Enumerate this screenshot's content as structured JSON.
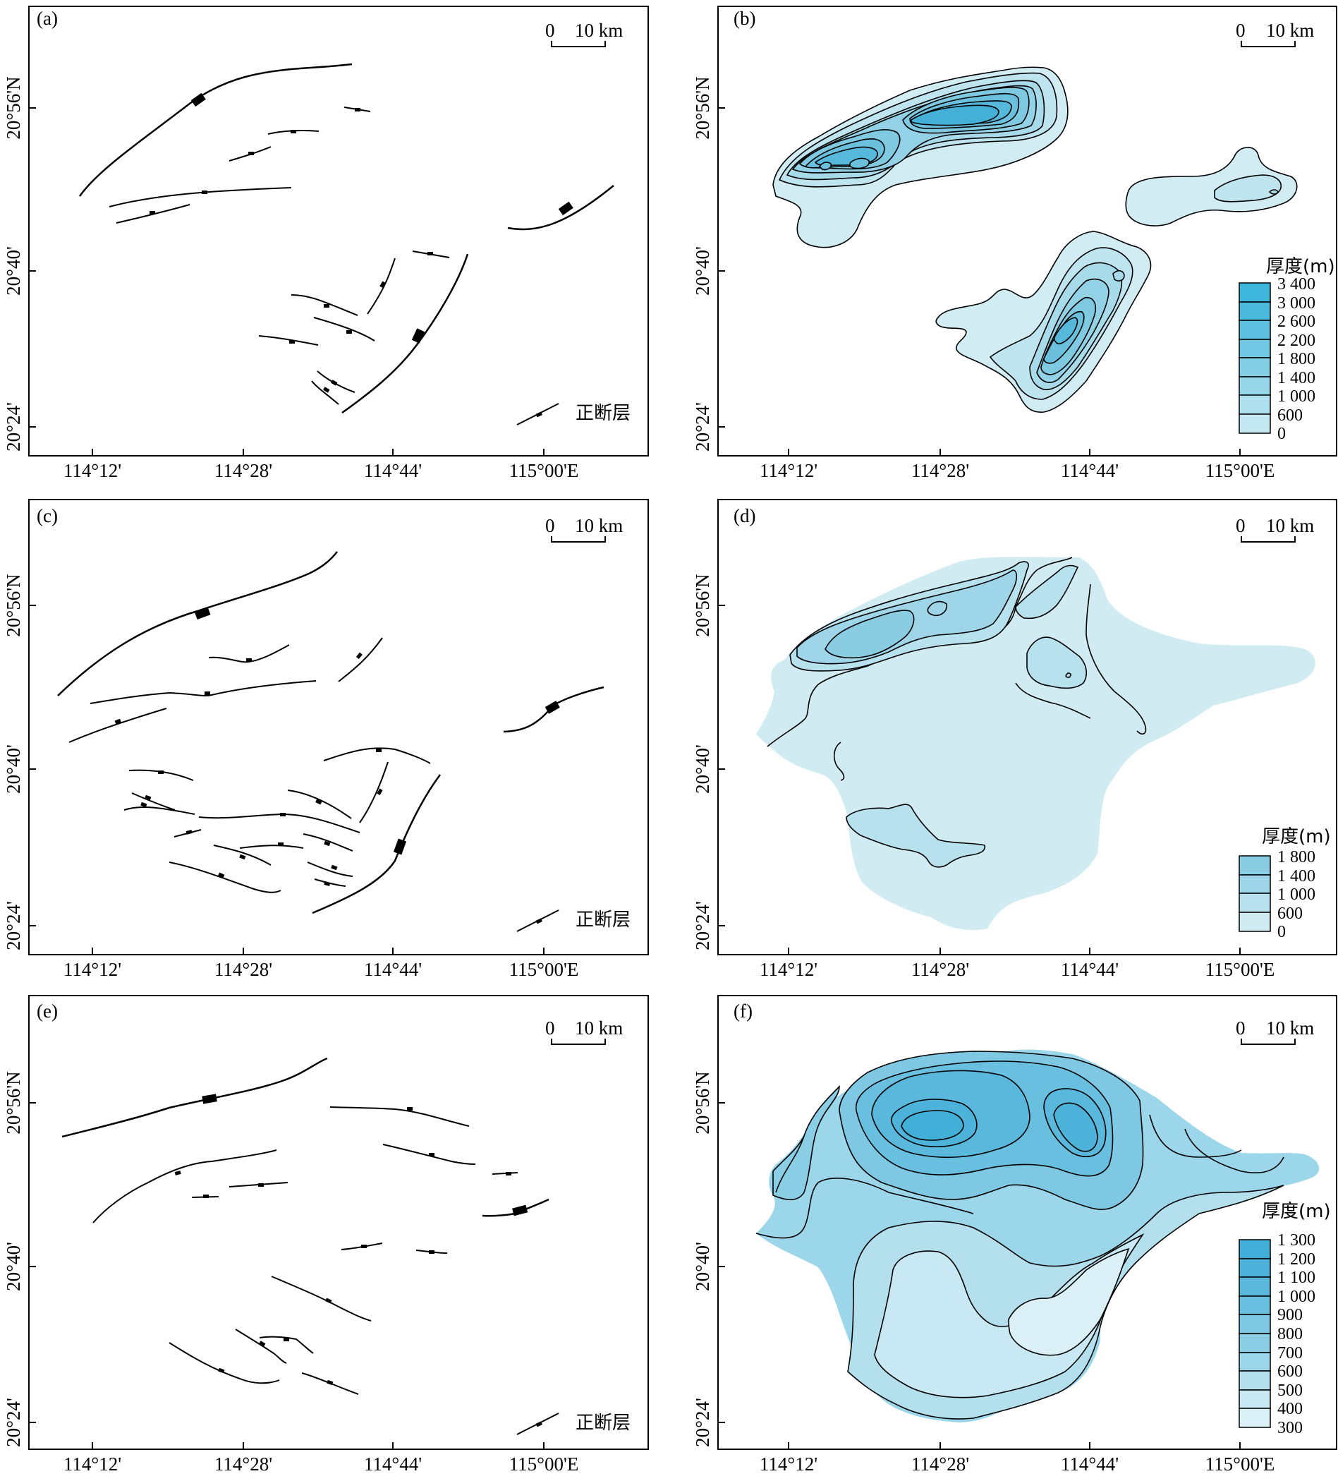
{
  "x_ticks": [
    "114°12'",
    "114°28'",
    "114°44'",
    "115°00'E"
  ],
  "y_ticks": [
    "20°56'N",
    "20°40'",
    "20°24'"
  ],
  "scale_bar": {
    "zero": "0",
    "length": "10 km"
  },
  "fault_legend": "正断层",
  "legend_title": "厚度(m)",
  "panels": [
    {
      "label": "(a)",
      "kind": "fault-map"
    },
    {
      "label": "(b)",
      "kind": "thickness-map",
      "legend_values": [
        "3 400",
        "3 000",
        "2 600",
        "2 200",
        "1 800",
        "1 400",
        "1 000",
        "600",
        "0"
      ]
    },
    {
      "label": "(c)",
      "kind": "fault-map"
    },
    {
      "label": "(d)",
      "kind": "thickness-map",
      "legend_values": [
        "1 800",
        "1 400",
        "1 000",
        "600",
        "0"
      ]
    },
    {
      "label": "(e)",
      "kind": "fault-map"
    },
    {
      "label": "(f)",
      "kind": "thickness-map",
      "legend_values": [
        "1 300",
        "1 200",
        "1 100",
        "1 000",
        "900",
        "800",
        "700",
        "600",
        "500",
        "400",
        "300"
      ]
    }
  ],
  "colors": {
    "ramp_light": "#d2ecf3",
    "ramp_dark": "#3fb6dc",
    "line": "#000000"
  }
}
